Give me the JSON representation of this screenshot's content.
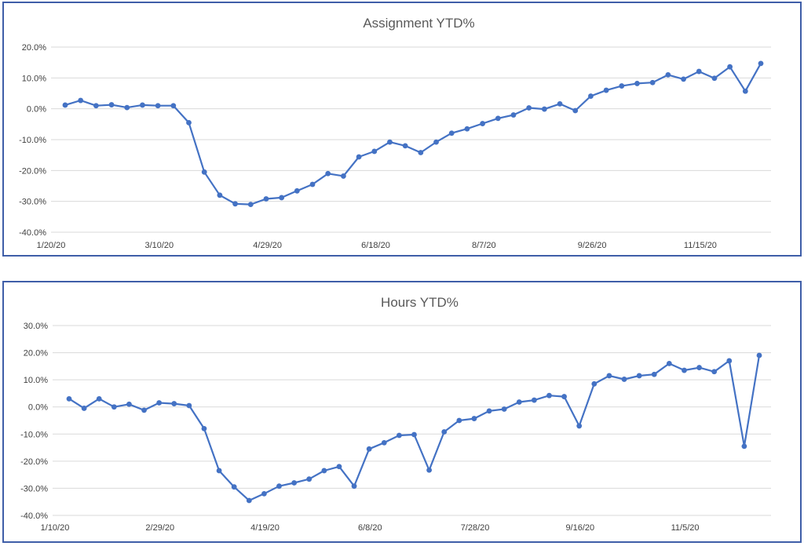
{
  "chart_data": [
    {
      "type": "line",
      "title": "Assignment YTD%",
      "xlabel": "",
      "ylabel": "",
      "y_ticks": [
        "20.0%",
        "10.0%",
        "0.0%",
        "-10.0%",
        "-20.0%",
        "-30.0%",
        "-40.0%"
      ],
      "ylim": [
        -40,
        20
      ],
      "x_tick_labels": [
        "1/20/20",
        "3/10/20",
        "4/29/20",
        "6/18/20",
        "8/7/20",
        "9/26/20",
        "11/15/20"
      ],
      "grid": true,
      "legend": "none",
      "color": "#4472c4",
      "series": [
        {
          "values": [
            1.2,
            2.7,
            1.0,
            1.3,
            0.4,
            1.2,
            1.0,
            1.0,
            -4.5,
            -20.5,
            -28.0,
            -30.8,
            -31.0,
            -29.2,
            -28.8,
            -26.6,
            -24.5,
            -21.0,
            -21.8,
            -15.6,
            -13.8,
            -10.8,
            -12.0,
            -14.2,
            -10.8,
            -7.9,
            -6.5,
            -4.8,
            -3.1,
            -2.0,
            0.3,
            -0.1,
            1.6,
            -0.6,
            4.1,
            6.0,
            7.4,
            8.2,
            8.5,
            11.0,
            9.6,
            12.1,
            9.9,
            13.6,
            5.7,
            14.7
          ]
        }
      ]
    },
    {
      "type": "line",
      "title": "Hours YTD%",
      "xlabel": "",
      "ylabel": "",
      "y_ticks": [
        "30.0%",
        "20.0%",
        "10.0%",
        "0.0%",
        "-10.0%",
        "-20.0%",
        "-30.0%",
        "-40.0%"
      ],
      "ylim": [
        -40,
        30
      ],
      "x_tick_labels": [
        "1/10/20",
        "2/29/20",
        "4/19/20",
        "6/8/20",
        "7/28/20",
        "9/16/20",
        "11/5/20"
      ],
      "grid": true,
      "legend": "none",
      "color": "#4472c4",
      "series": [
        {
          "values": [
            3.0,
            -0.5,
            3.0,
            0.0,
            1.0,
            -1.2,
            1.5,
            1.2,
            0.5,
            -8.0,
            -23.5,
            -29.5,
            -34.5,
            -32.0,
            -29.2,
            -28.0,
            -26.6,
            -23.5,
            -22.0,
            -29.2,
            -15.5,
            -13.2,
            -10.5,
            -10.2,
            -23.3,
            -9.2,
            -5.0,
            -4.3,
            -1.5,
            -0.8,
            1.8,
            2.5,
            4.2,
            3.8,
            -7.0,
            8.5,
            11.5,
            10.2,
            11.5,
            12.0,
            16.0,
            13.5,
            14.5,
            13.0,
            17.0,
            -14.5,
            19.0
          ]
        }
      ]
    }
  ]
}
